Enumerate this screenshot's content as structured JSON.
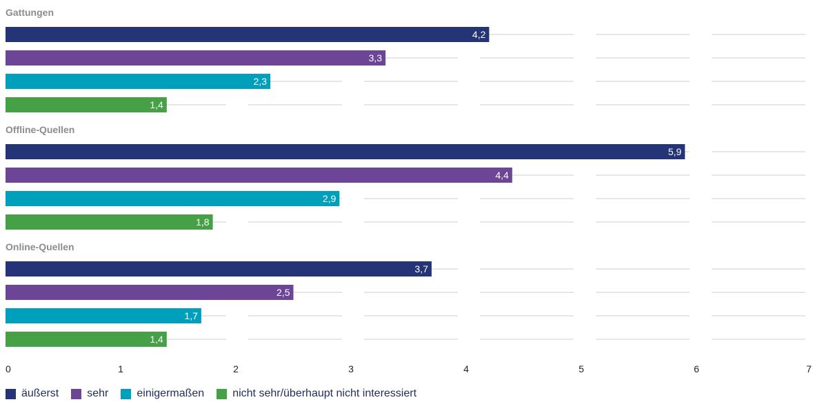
{
  "chart_data": {
    "type": "bar",
    "orientation": "horizontal",
    "groups": [
      "Gattungen",
      "Offline-Quellen",
      "Online-Quellen"
    ],
    "series": [
      {
        "name": "äußerst",
        "color": "#253476",
        "values": [
          4.2,
          5.9,
          3.7
        ],
        "labels": [
          "4,2",
          "5,9",
          "3,7"
        ]
      },
      {
        "name": "sehr",
        "color": "#6c4597",
        "values": [
          3.3,
          4.4,
          2.5
        ],
        "labels": [
          "3,3",
          "4,4",
          "2,5"
        ]
      },
      {
        "name": "einigermaßen",
        "color": "#00a0bd",
        "values": [
          2.3,
          2.9,
          1.7
        ],
        "labels": [
          "2,3",
          "2,9",
          "1,7"
        ]
      },
      {
        "name": "nicht sehr/überhaupt nicht interessiert",
        "color": "#46a046",
        "values": [
          1.4,
          1.8,
          1.4
        ],
        "labels": [
          "1,4",
          "1,8",
          "1,4"
        ]
      }
    ],
    "xlim": [
      0,
      7
    ],
    "xticks": [
      "0",
      "1",
      "2",
      "3",
      "4",
      "5",
      "6",
      "7"
    ],
    "grid": true,
    "legend_position": "bottom-left"
  }
}
